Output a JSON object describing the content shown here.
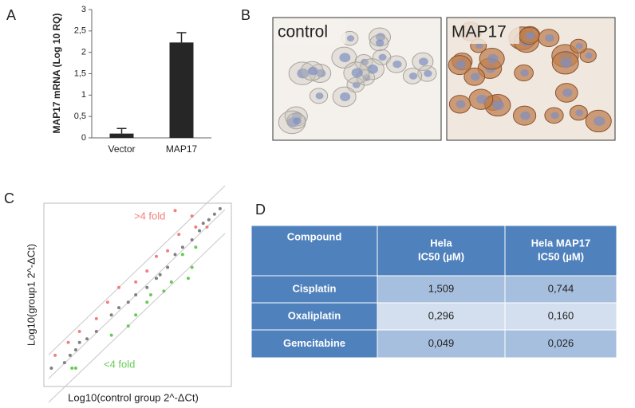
{
  "panels": [
    "A",
    "B",
    "C",
    "D"
  ],
  "chart_data": [
    {
      "type": "bar",
      "y_label": "MAP17 mRNA (Log 10 RQ)",
      "categories": [
        "Vector",
        "MAP17"
      ],
      "values": [
        0.1,
        2.23
      ],
      "errors": [
        0.12,
        0.23
      ],
      "color": "#262626",
      "ylim": [
        0,
        3
      ],
      "yticks": [
        0,
        {
          "value": 0.5,
          "label": "0,5"
        },
        1,
        {
          "value": 1.5,
          "label": "1,5"
        },
        2,
        {
          "value": 2.5,
          "label": "2,5"
        },
        3
      ]
    },
    {
      "type": "scatter",
      "x_label": "Log10(control group 2^-ΔCt)",
      "y_label": "Log10(group1 2^-ΔCt)",
      "xlim": [
        0,
        100
      ],
      "ylim": [
        0,
        100
      ],
      "series": [
        {
          "color": "#808080",
          "x": [
            4,
            11,
            14,
            17,
            19,
            23,
            28,
            36,
            40,
            45,
            49,
            55,
            60,
            62,
            66,
            70,
            74,
            79,
            83,
            85,
            88,
            91,
            94
          ],
          "values": [
            10,
            13,
            17,
            20,
            24,
            26,
            30,
            39,
            43,
            46,
            50,
            54,
            59,
            61,
            65,
            72,
            76,
            80,
            85,
            89,
            91,
            94,
            97
          ]
        },
        {
          "name": ">4 fold",
          "color": "#f08080",
          "x": [
            6,
            13,
            19,
            28,
            34,
            40,
            49,
            55,
            60,
            66,
            72,
            81,
            79,
            87,
            70
          ],
          "values": [
            17,
            24,
            30,
            37,
            46,
            54,
            57,
            63,
            71,
            74,
            83,
            87,
            93,
            87,
            96
          ]
        },
        {
          "name": "<4 fold",
          "color": "#66cc55",
          "x": [
            15,
            17,
            36,
            45,
            49,
            55,
            57,
            64,
            68,
            77,
            79,
            74,
            81
          ],
          "values": [
            10,
            10,
            28,
            33,
            39,
            46,
            50,
            52,
            57,
            59,
            65,
            72,
            76
          ]
        }
      ]
    }
  ],
  "images": [
    "control",
    "MAP17"
  ],
  "table": {
    "header": [
      [
        "Compound"
      ],
      [
        "Hela",
        "IC50 (µM)"
      ],
      [
        "Hela MAP17",
        "IC50 (µM)"
      ]
    ],
    "rows": [
      [
        "Cisplatin",
        "1,509",
        "0,744"
      ],
      [
        "Oxaliplatin",
        "0,296",
        "0,160"
      ],
      [
        "Gemcitabine",
        "0,049",
        "0,026"
      ]
    ]
  }
}
